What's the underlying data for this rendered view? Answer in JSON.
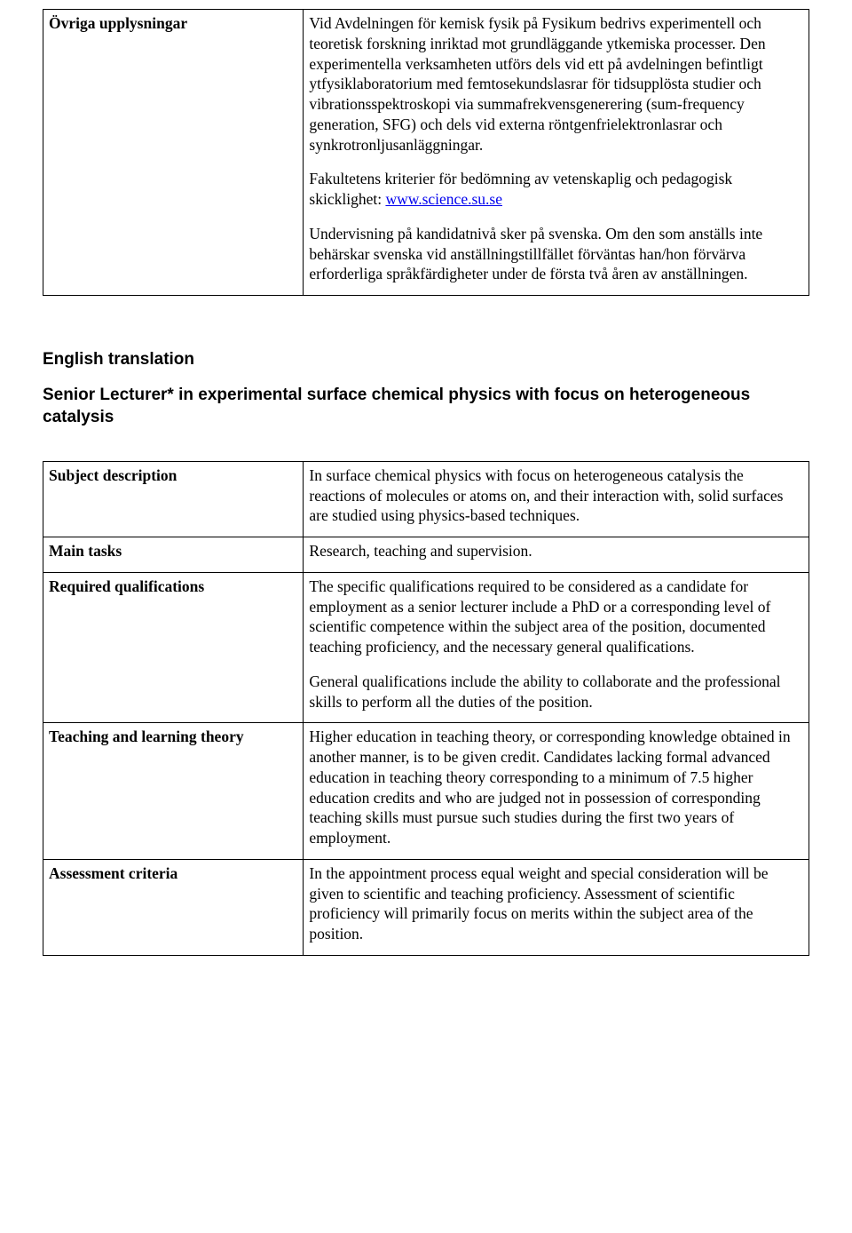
{
  "table1": {
    "row": {
      "label": "Övriga upplysningar",
      "p1": "Vid Avdelningen för kemisk fysik på Fysikum bedrivs experimentell och teoretisk  forskning inriktad mot grundläggande ytkemiska processer. Den experimentella verksamheten utförs dels vid ett på avdelningen befintligt ytfysiklaboratorium med femtosekundslasrar för tidsupplösta studier och vibrationsspektroskopi via summafrekvensgenerering (sum-frequency generation, SFG) och dels vid externa röntgenfrielektronlasrar och synkrotronljusanläggningar.",
      "p2_prefix": "Fakultetens kriterier för bedömning av vetenskaplig och pedagogisk skicklighet: ",
      "p2_link_text": "www.science.su.se",
      "p2_link_href": "http://www.science.su.se",
      "p3": "Undervisning på kandidatnivå sker på svenska. Om den som anställs inte behärskar svenska vid anställningstillfället förväntas han/hon förvärva erforderliga språkfärdigheter under de första två åren av anställningen."
    }
  },
  "english_heading": "English translation",
  "job_title": "Senior Lecturer* in experimental surface chemical physics with focus on heterogeneous catalysis",
  "table2": {
    "rows": [
      {
        "label": "Subject description",
        "paras": [
          "In surface chemical physics with focus on heterogeneous catalysis the reactions of molecules or atoms on, and their interaction with, solid surfaces are studied using physics-based techniques."
        ]
      },
      {
        "label": "Main tasks",
        "paras": [
          "Research, teaching and supervision."
        ]
      },
      {
        "label": "Required qualifications",
        "paras": [
          "The specific qualifications required to be considered as a candidate for employment as a senior lecturer include a PhD or a corresponding level of scientific competence within the subject area of the position, documented teaching proficiency, and the necessary general qualifications.",
          "General qualifications include the ability to collaborate and the professional skills to perform all the duties of the position."
        ]
      },
      {
        "label": "Teaching and learning theory",
        "paras": [
          "Higher education in teaching theory, or corresponding knowledge obtained in another manner, is to be given credit. Candidates lacking formal advanced education in teaching theory corresponding to a minimum of 7.5 higher education credits and who are judged not in possession of corresponding teaching skills must pursue such studies during the first two years of employment."
        ]
      },
      {
        "label": "Assessment criteria",
        "paras": [
          "In the appointment process equal weight and special consideration will be given to scientific and teaching proficiency. Assessment of scientific proficiency will primarily focus on merits within the subject area of the position."
        ]
      }
    ]
  }
}
